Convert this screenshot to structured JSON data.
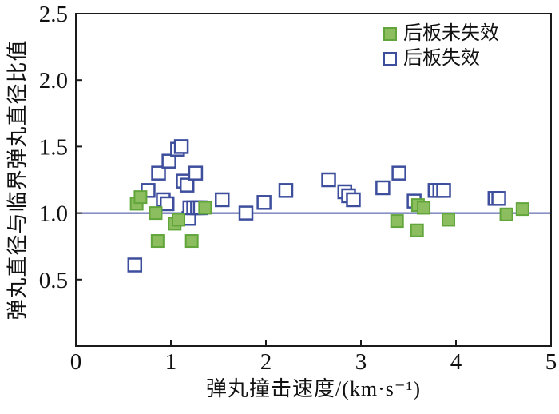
{
  "chart_data": {
    "type": "scatter",
    "title": "",
    "xlabel": "弹丸撞击速度/(km·s⁻¹)",
    "ylabel": "弹丸直径与临界弹丸直径比值",
    "xlim": [
      0,
      5
    ],
    "ylim": [
      0,
      2.5
    ],
    "xticks": [
      0,
      1,
      2,
      3,
      4,
      5
    ],
    "yticks": [
      0.5,
      1.0,
      1.5,
      2.0,
      2.5
    ],
    "grid": false,
    "legend_position": "top-right-inside",
    "axis_color": "#1a1a1a",
    "reference_line": {
      "y": 1.0,
      "color": "#3d4e9d"
    },
    "series": [
      {
        "name": "后板未失效",
        "marker": "filled-square",
        "fill": "#8cbe60",
        "border": "#61a53b",
        "points": [
          [
            0.64,
            1.07
          ],
          [
            0.68,
            1.12
          ],
          [
            0.84,
            1.0
          ],
          [
            0.86,
            0.79
          ],
          [
            1.04,
            0.92
          ],
          [
            1.08,
            0.95
          ],
          [
            1.22,
            0.79
          ],
          [
            1.36,
            1.04
          ],
          [
            3.38,
            0.94
          ],
          [
            3.59,
            0.87
          ],
          [
            3.6,
            1.06
          ],
          [
            3.66,
            1.04
          ],
          [
            3.92,
            0.95
          ],
          [
            4.53,
            0.99
          ],
          [
            4.7,
            1.03
          ]
        ]
      },
      {
        "name": "后板失效",
        "marker": "open-square",
        "fill": "#ffffff",
        "border": "#3d4e9d",
        "points": [
          [
            0.62,
            0.61
          ],
          [
            0.76,
            1.17
          ],
          [
            0.87,
            1.3
          ],
          [
            0.92,
            1.1
          ],
          [
            0.96,
            1.07
          ],
          [
            0.98,
            1.39
          ],
          [
            1.07,
            1.48
          ],
          [
            1.11,
            1.5
          ],
          [
            1.13,
            1.24
          ],
          [
            1.17,
            1.21
          ],
          [
            1.19,
            0.96
          ],
          [
            1.2,
            1.04
          ],
          [
            1.24,
            1.04
          ],
          [
            1.28,
            1.04
          ],
          [
            1.31,
            1.04
          ],
          [
            1.26,
            1.3
          ],
          [
            1.54,
            1.1
          ],
          [
            1.79,
            1.0
          ],
          [
            1.98,
            1.08
          ],
          [
            2.21,
            1.17
          ],
          [
            2.66,
            1.25
          ],
          [
            2.83,
            1.16
          ],
          [
            2.87,
            1.13
          ],
          [
            2.92,
            1.1
          ],
          [
            3.23,
            1.19
          ],
          [
            3.4,
            1.3
          ],
          [
            3.56,
            1.09
          ],
          [
            3.78,
            1.17
          ],
          [
            3.83,
            1.17
          ],
          [
            3.87,
            1.17
          ],
          [
            4.41,
            1.11
          ],
          [
            4.45,
            1.11
          ]
        ]
      }
    ]
  }
}
